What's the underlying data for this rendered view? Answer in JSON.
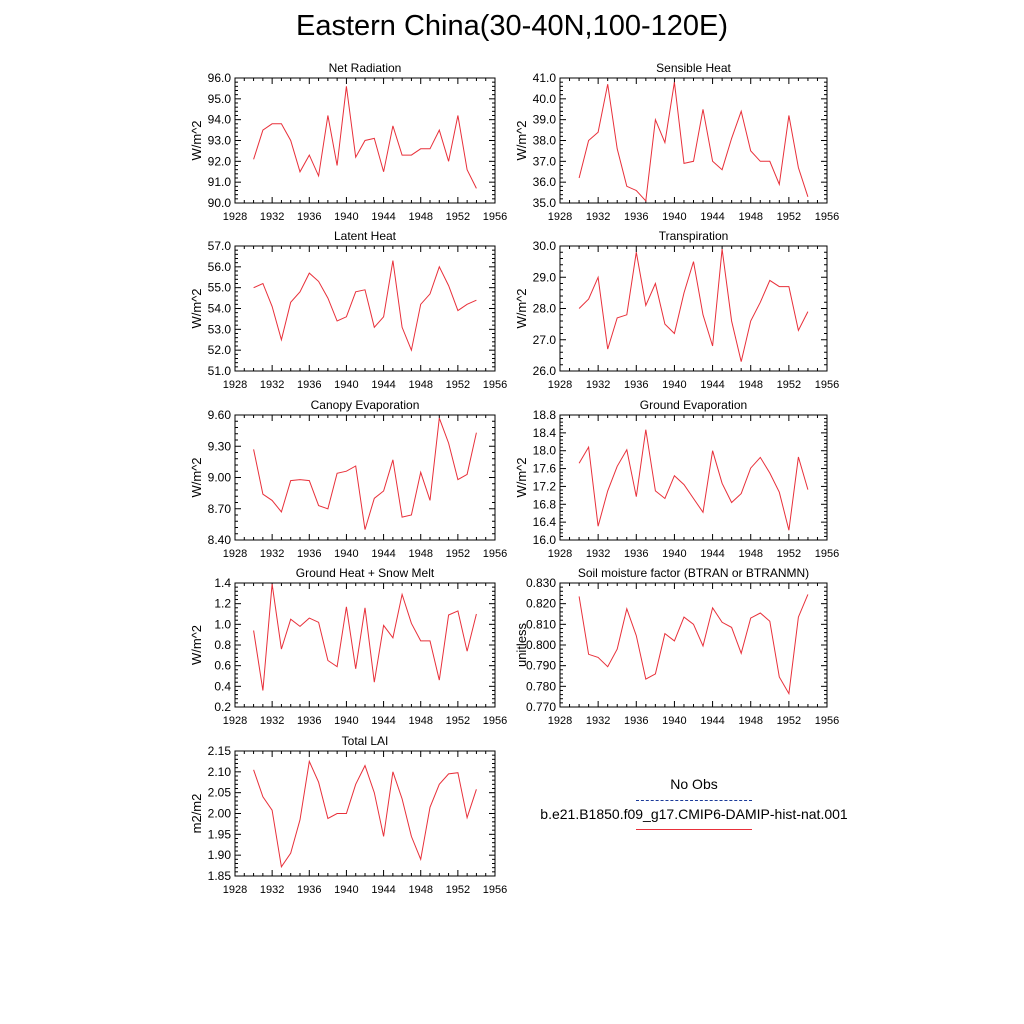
{
  "title": "Eastern China(30-40N,100-120E)",
  "legend": {
    "obs_label": "No Obs",
    "obs_color": "#1a3a9a",
    "case_label": "b.e21.B1850.f09_g17.CMIP6-DAMIP-hist-nat.001",
    "case_color": "#e8303a"
  },
  "chart_data": [
    {
      "type": "line",
      "title": "Net Radiation",
      "ylabel": "W/m^2",
      "xlim": [
        1928,
        1956
      ],
      "ylim": [
        90.0,
        96.0
      ],
      "xticks": [
        1928,
        1932,
        1936,
        1940,
        1944,
        1948,
        1952,
        1956
      ],
      "yticks": [
        "90.0",
        "91.0",
        "92.0",
        "93.0",
        "94.0",
        "95.0",
        "96.0"
      ],
      "x": [
        1930,
        1931,
        1932,
        1933,
        1934,
        1935,
        1936,
        1937,
        1938,
        1939,
        1940,
        1941,
        1942,
        1943,
        1944,
        1945,
        1946,
        1947,
        1948,
        1949,
        1950,
        1951,
        1952,
        1953,
        1954
      ],
      "values": [
        92.1,
        93.5,
        93.8,
        93.8,
        93.0,
        91.5,
        92.3,
        91.3,
        94.2,
        91.8,
        95.6,
        92.2,
        93.0,
        93.1,
        91.5,
        93.7,
        92.3,
        92.3,
        92.6,
        92.6,
        93.5,
        92.0,
        94.2,
        91.6,
        90.7
      ]
    },
    {
      "type": "line",
      "title": "Sensible Heat",
      "ylabel": "W/m^2",
      "xlim": [
        1928,
        1956
      ],
      "ylim": [
        35.0,
        41.0
      ],
      "xticks": [
        1928,
        1932,
        1936,
        1940,
        1944,
        1948,
        1952,
        1956
      ],
      "yticks": [
        "35.0",
        "36.0",
        "37.0",
        "38.0",
        "39.0",
        "40.0",
        "41.0"
      ],
      "x": [
        1930,
        1931,
        1932,
        1933,
        1934,
        1935,
        1936,
        1937,
        1938,
        1939,
        1940,
        1941,
        1942,
        1943,
        1944,
        1945,
        1946,
        1947,
        1948,
        1949,
        1950,
        1951,
        1952,
        1953,
        1954
      ],
      "values": [
        36.2,
        38.0,
        38.4,
        40.7,
        37.6,
        35.8,
        35.6,
        35.1,
        39.0,
        37.9,
        40.8,
        36.9,
        37.0,
        39.5,
        37.0,
        36.6,
        38.1,
        39.4,
        37.5,
        37.0,
        37.0,
        35.9,
        39.2,
        36.7,
        35.3
      ]
    },
    {
      "type": "line",
      "title": "Latent Heat",
      "ylabel": "W/m^2",
      "xlim": [
        1928,
        1956
      ],
      "ylim": [
        51.0,
        57.0
      ],
      "xticks": [
        1928,
        1932,
        1936,
        1940,
        1944,
        1948,
        1952,
        1956
      ],
      "yticks": [
        "51.0",
        "52.0",
        "53.0",
        "54.0",
        "55.0",
        "56.0",
        "57.0"
      ],
      "x": [
        1930,
        1931,
        1932,
        1933,
        1934,
        1935,
        1936,
        1937,
        1938,
        1939,
        1940,
        1941,
        1942,
        1943,
        1944,
        1945,
        1946,
        1947,
        1948,
        1949,
        1950,
        1951,
        1952,
        1953,
        1954
      ],
      "values": [
        55.0,
        55.2,
        54.1,
        52.5,
        54.3,
        54.8,
        55.7,
        55.3,
        54.5,
        53.4,
        53.6,
        54.8,
        54.9,
        53.1,
        53.6,
        56.3,
        53.1,
        52.0,
        54.2,
        54.7,
        56.0,
        55.1,
        53.9,
        54.2,
        54.4
      ]
    },
    {
      "type": "line",
      "title": "Transpiration",
      "ylabel": "W/m^2",
      "xlim": [
        1928,
        1956
      ],
      "ylim": [
        26.0,
        30.0
      ],
      "xticks": [
        1928,
        1932,
        1936,
        1940,
        1944,
        1948,
        1952,
        1956
      ],
      "yticks": [
        "26.0",
        "27.0",
        "28.0",
        "29.0",
        "30.0"
      ],
      "x": [
        1930,
        1931,
        1932,
        1933,
        1934,
        1935,
        1936,
        1937,
        1938,
        1939,
        1940,
        1941,
        1942,
        1943,
        1944,
        1945,
        1946,
        1947,
        1948,
        1949,
        1950,
        1951,
        1952,
        1953,
        1954
      ],
      "values": [
        28.0,
        28.3,
        29.0,
        26.7,
        27.7,
        27.8,
        29.8,
        28.1,
        28.8,
        27.5,
        27.2,
        28.5,
        29.5,
        27.8,
        26.8,
        29.9,
        27.6,
        26.3,
        27.6,
        28.2,
        28.9,
        28.7,
        28.7,
        27.3,
        27.9
      ]
    },
    {
      "type": "line",
      "title": "Canopy Evaporation",
      "ylabel": "W/m^2",
      "xlim": [
        1928,
        1956
      ],
      "ylim": [
        8.4,
        9.6
      ],
      "xticks": [
        1928,
        1932,
        1936,
        1940,
        1944,
        1948,
        1952,
        1956
      ],
      "yticks": [
        "8.40",
        "8.70",
        "9.00",
        "9.30",
        "9.60"
      ],
      "x": [
        1930,
        1931,
        1932,
        1933,
        1934,
        1935,
        1936,
        1937,
        1938,
        1939,
        1940,
        1941,
        1942,
        1943,
        1944,
        1945,
        1946,
        1947,
        1948,
        1949,
        1950,
        1951,
        1952,
        1953,
        1954
      ],
      "values": [
        9.27,
        8.84,
        8.78,
        8.67,
        8.97,
        8.98,
        8.97,
        8.73,
        8.7,
        9.04,
        9.06,
        9.11,
        8.5,
        8.8,
        8.87,
        9.17,
        8.62,
        8.64,
        9.05,
        8.78,
        9.57,
        9.33,
        8.98,
        9.03,
        9.43
      ]
    },
    {
      "type": "line",
      "title": "Ground Evaporation",
      "ylabel": "W/m^2",
      "xlim": [
        1928,
        1956
      ],
      "ylim": [
        16.0,
        18.8
      ],
      "xticks": [
        1928,
        1932,
        1936,
        1940,
        1944,
        1948,
        1952,
        1956
      ],
      "yticks": [
        "16.0",
        "16.4",
        "16.8",
        "17.2",
        "17.6",
        "18.0",
        "18.4",
        "18.8"
      ],
      "x": [
        1930,
        1931,
        1932,
        1933,
        1934,
        1935,
        1936,
        1937,
        1938,
        1939,
        1940,
        1941,
        1942,
        1943,
        1944,
        1945,
        1946,
        1947,
        1948,
        1949,
        1950,
        1951,
        1952,
        1953,
        1954
      ],
      "values": [
        17.72,
        18.08,
        16.31,
        17.1,
        17.65,
        18.02,
        16.97,
        18.47,
        17.1,
        16.93,
        17.44,
        17.24,
        16.93,
        16.62,
        18.0,
        17.27,
        16.84,
        17.04,
        17.61,
        17.85,
        17.5,
        17.07,
        16.22,
        17.86,
        17.13
      ]
    },
    {
      "type": "line",
      "title": "Ground Heat + Snow Melt",
      "ylabel": "W/m^2",
      "xlim": [
        1928,
        1956
      ],
      "ylim": [
        0.2,
        1.4
      ],
      "xticks": [
        1928,
        1932,
        1936,
        1940,
        1944,
        1948,
        1952,
        1956
      ],
      "yticks": [
        "0.2",
        "0.4",
        "0.6",
        "0.8",
        "1.0",
        "1.2",
        "1.4"
      ],
      "x": [
        1930,
        1931,
        1932,
        1933,
        1934,
        1935,
        1936,
        1937,
        1938,
        1939,
        1940,
        1941,
        1942,
        1943,
        1944,
        1945,
        1946,
        1947,
        1948,
        1949,
        1950,
        1951,
        1952,
        1953,
        1954
      ],
      "values": [
        0.94,
        0.36,
        1.39,
        0.76,
        1.05,
        0.98,
        1.06,
        1.02,
        0.65,
        0.59,
        1.17,
        0.57,
        1.16,
        0.44,
        0.99,
        0.87,
        1.29,
        1.01,
        0.84,
        0.84,
        0.46,
        1.09,
        1.13,
        0.74,
        1.1
      ]
    },
    {
      "type": "line",
      "title": "Soil moisture factor (BTRAN or BTRANMN)",
      "ylabel": "unitless",
      "xlim": [
        1928,
        1956
      ],
      "ylim": [
        0.77,
        0.83
      ],
      "xticks": [
        1928,
        1932,
        1936,
        1940,
        1944,
        1948,
        1952,
        1956
      ],
      "yticks": [
        "0.770",
        "0.780",
        "0.790",
        "0.800",
        "0.810",
        "0.820",
        "0.830"
      ],
      "x": [
        1930,
        1931,
        1932,
        1933,
        1934,
        1935,
        1936,
        1937,
        1938,
        1939,
        1940,
        1941,
        1942,
        1943,
        1944,
        1945,
        1946,
        1947,
        1948,
        1949,
        1950,
        1951,
        1952,
        1953,
        1954
      ],
      "values": [
        0.8235,
        0.7955,
        0.794,
        0.7895,
        0.798,
        0.8175,
        0.8045,
        0.7835,
        0.786,
        0.8055,
        0.802,
        0.8135,
        0.81,
        0.7995,
        0.818,
        0.811,
        0.8085,
        0.796,
        0.813,
        0.8155,
        0.8115,
        0.7845,
        0.7765,
        0.8135,
        0.8245
      ]
    },
    {
      "type": "line",
      "title": "Total LAI",
      "ylabel": "m2/m2",
      "xlim": [
        1928,
        1956
      ],
      "ylim": [
        1.85,
        2.15
      ],
      "xticks": [
        1928,
        1932,
        1936,
        1940,
        1944,
        1948,
        1952,
        1956
      ],
      "yticks": [
        "1.85",
        "1.90",
        "1.95",
        "2.00",
        "2.05",
        "2.10",
        "2.15"
      ],
      "x": [
        1930,
        1931,
        1932,
        1933,
        1934,
        1935,
        1936,
        1937,
        1938,
        1939,
        1940,
        1941,
        1942,
        1943,
        1944,
        1945,
        1946,
        1947,
        1948,
        1949,
        1950,
        1951,
        1952,
        1953,
        1954
      ],
      "values": [
        2.105,
        2.04,
        2.008,
        1.872,
        1.905,
        1.985,
        2.125,
        2.075,
        1.988,
        2.0,
        2.0,
        2.07,
        2.115,
        2.05,
        1.945,
        2.1,
        2.035,
        1.945,
        1.89,
        2.015,
        2.07,
        2.095,
        2.098,
        1.99,
        2.058
      ]
    }
  ]
}
